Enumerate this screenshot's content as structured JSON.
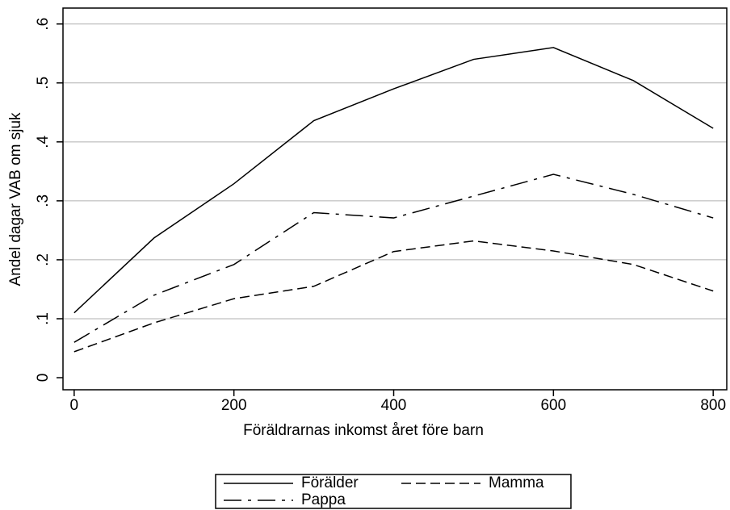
{
  "chart_data": {
    "type": "line",
    "y_label": "Andel dagar VAB om sjuk",
    "x_label": "Föräldrarnas inkomst året före barn",
    "x": [
      0,
      100,
      200,
      300,
      400,
      500,
      600,
      700,
      800
    ],
    "series": [
      {
        "name": "Förälder",
        "color": "#000000",
        "dash": "solid",
        "values": [
          0.11,
          0.237,
          0.329,
          0.436,
          0.49,
          0.54,
          0.56,
          0.504,
          0.423
        ]
      },
      {
        "name": "Mamma",
        "color": "#000000",
        "dash": "dash",
        "values": [
          0.044,
          0.093,
          0.134,
          0.155,
          0.214,
          0.232,
          0.215,
          0.192,
          0.147
        ]
      },
      {
        "name": "Pappa",
        "color": "#000000",
        "dash": "longdash-dot",
        "values": [
          0.06,
          0.14,
          0.192,
          0.28,
          0.271,
          0.308,
          0.345,
          0.311,
          0.271
        ]
      }
    ],
    "xlim": [
      -14,
      817
    ],
    "xticks": [
      0,
      200,
      400,
      600,
      800
    ],
    "ylim": [
      -0.0205,
      0.627
    ],
    "yticks": [
      0,
      {
        "value": 0.1,
        "label": ".1"
      },
      {
        "value": 0.2,
        "label": ".2"
      },
      {
        "value": 0.3,
        "label": ".3"
      },
      {
        "value": 0.4,
        "label": ".4"
      },
      {
        "value": 0.5,
        "label": ".5"
      },
      {
        "value": 0.6,
        "label": ".6"
      }
    ],
    "grid": true,
    "legend": "bottom"
  }
}
